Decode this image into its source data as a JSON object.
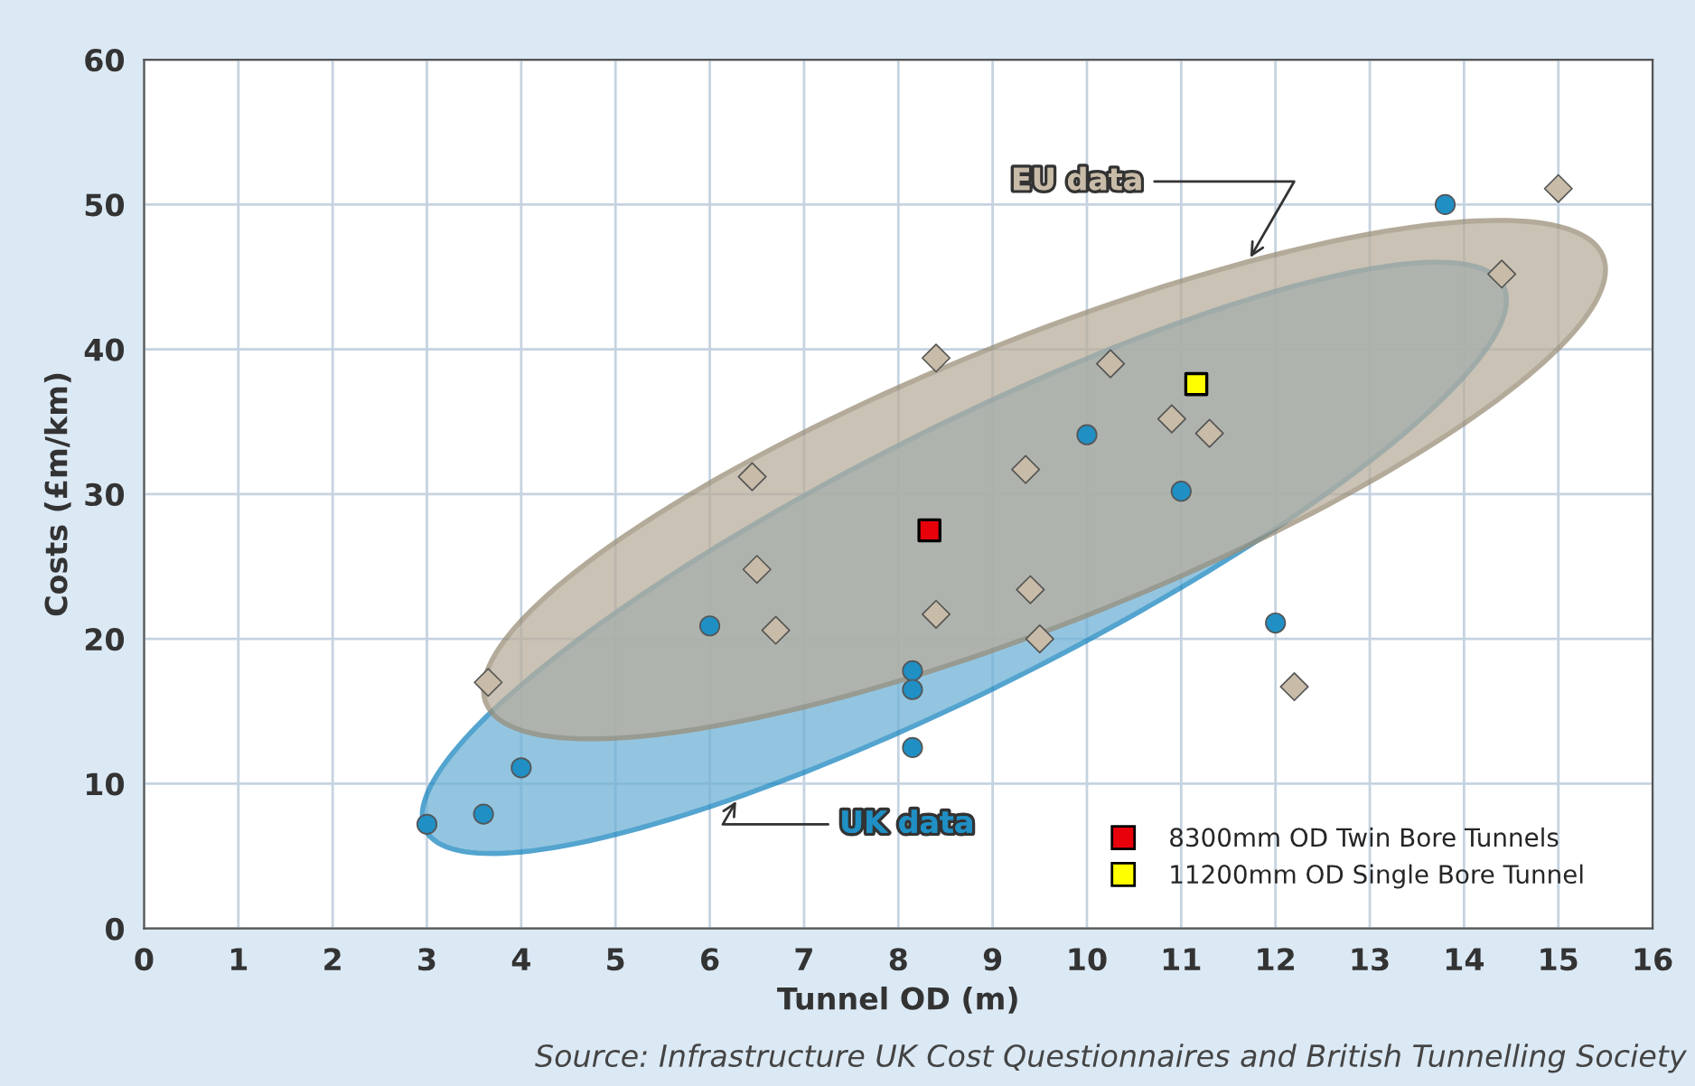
{
  "chart_data": {
    "type": "scatter",
    "xlabel": "Tunnel OD (m)",
    "ylabel": "Costs (£m/km)",
    "xlim": [
      0,
      16
    ],
    "ylim": [
      0,
      60
    ],
    "xticks": [
      0,
      1,
      2,
      3,
      4,
      5,
      6,
      7,
      8,
      9,
      10,
      11,
      12,
      13,
      14,
      15,
      16
    ],
    "yticks": [
      0,
      10,
      20,
      30,
      40,
      50,
      60
    ],
    "grid": true,
    "legend": "bottom right",
    "series": [
      {
        "name": "UK data",
        "color": "#1f8fc4",
        "marker": "circle",
        "x": [
          3.0,
          3.6,
          4.0,
          6.0,
          8.15,
          8.15,
          8.15,
          10.0,
          11.0,
          12.0,
          13.8
        ],
        "values": [
          7.2,
          7.9,
          11.1,
          20.9,
          17.8,
          16.5,
          12.5,
          34.1,
          30.2,
          21.1,
          50.0
        ]
      },
      {
        "name": "EU data",
        "color": "#c8bca8",
        "marker": "diamond",
        "x": [
          3.65,
          6.45,
          6.5,
          6.7,
          8.4,
          8.4,
          9.35,
          9.4,
          9.5,
          10.25,
          10.9,
          11.3,
          12.2,
          14.4,
          15.0
        ],
        "values": [
          17.0,
          31.2,
          24.8,
          20.6,
          39.4,
          21.7,
          31.7,
          23.4,
          20.0,
          39.0,
          35.2,
          34.2,
          16.7,
          45.2,
          51.1
        ]
      },
      {
        "name": "8300mm OD Twin Bore Tunnels",
        "color": "#e8000b",
        "marker": "square",
        "x": [
          8.33
        ],
        "values": [
          27.5
        ]
      },
      {
        "name": "11200mm OD Single Bore Tunnel",
        "color": "#ffff00",
        "marker": "square",
        "x": [
          11.16
        ],
        "values": [
          37.6
        ]
      }
    ],
    "annotations": [
      "Source: Infrastructure UK Cost Questionnaires and British Tunnelling Society"
    ]
  }
}
